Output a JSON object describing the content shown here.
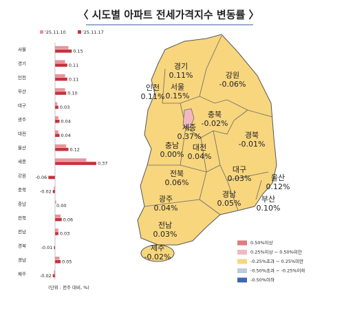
{
  "title": "〈 시도별 아파트 전세가격지수 변동률 〉",
  "chart_data": {
    "type": "hbar",
    "categories": [
      "서울",
      "경기",
      "인천",
      "부산",
      "대구",
      "광주",
      "대전",
      "울산",
      "세종",
      "강원",
      "충북",
      "충남",
      "전북",
      "전남",
      "경북",
      "경남",
      "제주"
    ],
    "series": [
      {
        "name": "'25.11.10",
        "color": "#e8949c",
        "values": [
          0.12,
          0.09,
          0.09,
          0.09,
          0.02,
          0.03,
          0.03,
          0.1,
          0.28,
          0,
          -0.01,
          0.01,
          0.05,
          0.03,
          0,
          0.04,
          -0.01
        ]
      },
      {
        "name": "'25.11.17",
        "color": "#c8323c",
        "values": [
          0.15,
          0.11,
          0.11,
          0.1,
          0.03,
          0.04,
          0.04,
          0.12,
          0.37,
          -0.06,
          -0.02,
          0,
          0.06,
          0.03,
          -0.01,
          0.05,
          -0.02
        ],
        "value_labels": [
          "0.15",
          "0.11",
          "0.11",
          "0.10",
          "0.03",
          "0.04",
          "0.04",
          "0.12",
          "0.37",
          "-0.06",
          "-0.02",
          "0.00",
          "0.06",
          "0.03",
          "-0.01",
          "0.05",
          "-0.02"
        ]
      }
    ],
    "xlim": [
      -0.1,
      0.4
    ],
    "note": "(단위 : 전주 대비, %)"
  },
  "map": {
    "regions": [
      {
        "name": "경기",
        "change": "0.11%"
      },
      {
        "name": "강원",
        "change": "-0.06%"
      },
      {
        "name": "인천",
        "change": "0.11%"
      },
      {
        "name": "서울",
        "change": "0.15%"
      },
      {
        "name": "충북",
        "change": "-0.02%"
      },
      {
        "name": "세종",
        "change": "0.37%"
      },
      {
        "name": "경북",
        "change": "-0.01%"
      },
      {
        "name": "충남",
        "change": "0.00%"
      },
      {
        "name": "대전",
        "change": "0.04%"
      },
      {
        "name": "대구",
        "change": "0.03%"
      },
      {
        "name": "울산",
        "change": "0.12%"
      },
      {
        "name": "전북",
        "change": "0.06%"
      },
      {
        "name": "경남",
        "change": "0.05%"
      },
      {
        "name": "부산",
        "change": "0.10%"
      },
      {
        "name": "광주",
        "change": "0.04%"
      },
      {
        "name": "전남",
        "change": "0.03%"
      },
      {
        "name": "제주",
        "change": "-0.02%"
      }
    ],
    "legend": [
      {
        "label": "0.50%이상",
        "color": "#e07a80"
      },
      {
        "label": "0.25%이상 ~ 0.50%미만",
        "color": "#f2b8c0"
      },
      {
        "label": "-0.25%초과 ~ 0.25%미만",
        "color": "#f8d67e"
      },
      {
        "label": "-0.50%초과 ~ -0.25%이하",
        "color": "#bccbe2"
      },
      {
        "label": "-0.50%이하",
        "color": "#3f66b0"
      }
    ]
  }
}
